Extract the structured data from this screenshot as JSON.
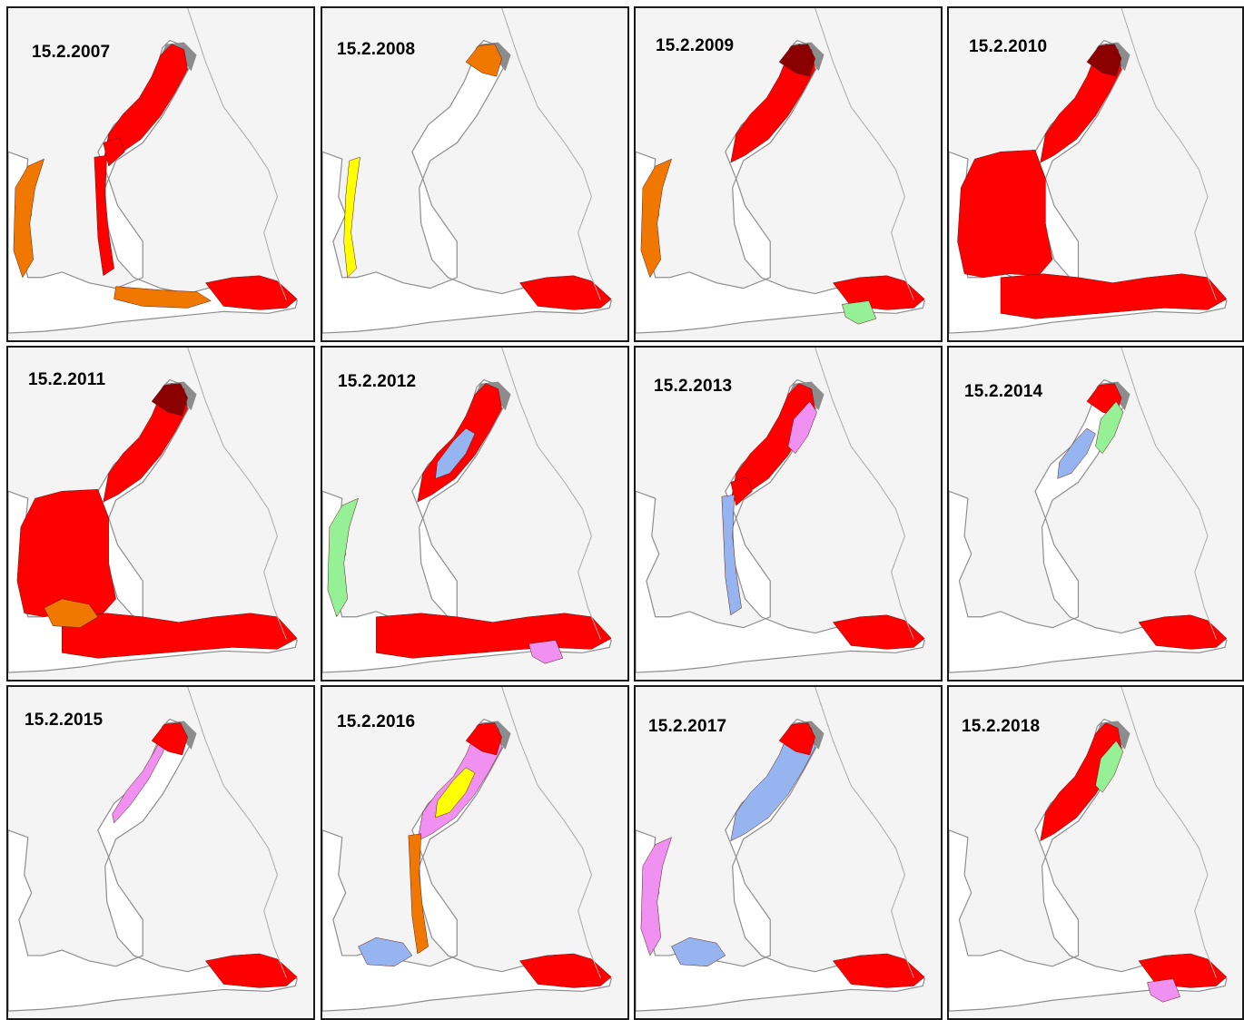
{
  "colors": {
    "land": "#f4f4f4",
    "open_water": "#ffffff",
    "land_fast_shadow": "#8c8c8c",
    "very_dark_red": "#8b0000",
    "red": "#ff0000",
    "orange": "#f07800",
    "yellow": "#ffff00",
    "green": "#96f096",
    "blue": "#96b4f0",
    "pink": "#f090f0",
    "border_line": "#a8a8a8"
  },
  "panels": [
    {
      "label": "15.2.2007",
      "ice": [
        {
          "area": "bothnian_bay",
          "color": "red"
        },
        {
          "area": "kvarken",
          "color": "red"
        },
        {
          "area": "bothnian_sea_east_coast",
          "color": "red"
        },
        {
          "area": "bothnian_sea_west_coast",
          "color": "orange"
        },
        {
          "area": "gulf_of_finland_east",
          "color": "red"
        },
        {
          "area": "gulf_of_finland_west",
          "color": "orange"
        }
      ]
    },
    {
      "label": "15.2.2008",
      "ice": [
        {
          "area": "bothnian_bay_north",
          "color": "orange"
        },
        {
          "area": "coastal_fringe",
          "color": "yellow"
        },
        {
          "area": "gulf_of_finland_east",
          "color": "red"
        }
      ]
    },
    {
      "label": "15.2.2009",
      "ice": [
        {
          "area": "bothnian_bay",
          "color": "red"
        },
        {
          "area": "bothnian_bay_north",
          "color": "very_dark_red"
        },
        {
          "area": "bothnian_sea_west_coast",
          "color": "orange"
        },
        {
          "area": "gulf_of_finland_east",
          "color": "red"
        },
        {
          "area": "gulf_of_finland_south",
          "color": "green"
        }
      ]
    },
    {
      "label": "15.2.2010",
      "ice": [
        {
          "area": "bothnian_bay",
          "color": "red"
        },
        {
          "area": "bothnian_bay_north",
          "color": "very_dark_red"
        },
        {
          "area": "bothnian_sea",
          "color": "red"
        },
        {
          "area": "gulf_of_finland",
          "color": "red"
        }
      ]
    },
    {
      "label": "15.2.2011",
      "ice": [
        {
          "area": "bothnian_bay",
          "color": "red"
        },
        {
          "area": "bothnian_bay_north",
          "color": "very_dark_red"
        },
        {
          "area": "bothnian_sea",
          "color": "red"
        },
        {
          "area": "gulf_of_finland",
          "color": "red"
        },
        {
          "area": "archipelago_sea",
          "color": "orange"
        }
      ]
    },
    {
      "label": "15.2.2012",
      "ice": [
        {
          "area": "bothnian_bay",
          "color": "red"
        },
        {
          "area": "bothnian_bay_center",
          "color": "blue"
        },
        {
          "area": "bothnian_sea_west_coast",
          "color": "green"
        },
        {
          "area": "gulf_of_finland",
          "color": "red"
        },
        {
          "area": "gulf_of_finland_south",
          "color": "pink"
        }
      ]
    },
    {
      "label": "15.2.2013",
      "ice": [
        {
          "area": "bothnian_bay",
          "color": "red"
        },
        {
          "area": "bothnian_bay_east",
          "color": "pink"
        },
        {
          "area": "kvarken",
          "color": "red"
        },
        {
          "area": "bothnian_sea_east_coast",
          "color": "blue"
        },
        {
          "area": "gulf_of_finland_east",
          "color": "red"
        }
      ]
    },
    {
      "label": "15.2.2014",
      "ice": [
        {
          "area": "bothnian_bay_north",
          "color": "red"
        },
        {
          "area": "bothnian_bay_center",
          "color": "blue"
        },
        {
          "area": "bothnian_bay_east",
          "color": "green"
        },
        {
          "area": "gulf_of_finland_east",
          "color": "red"
        }
      ]
    },
    {
      "label": "15.2.2015",
      "ice": [
        {
          "area": "bothnian_bay_coast",
          "color": "pink"
        },
        {
          "area": "bothnian_bay_north",
          "color": "red"
        },
        {
          "area": "gulf_of_finland_east",
          "color": "red"
        }
      ]
    },
    {
      "label": "15.2.2016",
      "ice": [
        {
          "area": "bothnian_bay",
          "color": "pink"
        },
        {
          "area": "bothnian_bay_north",
          "color": "red"
        },
        {
          "area": "bothnian_bay_center",
          "color": "yellow"
        },
        {
          "area": "bothnian_sea_east_coast",
          "color": "orange"
        },
        {
          "area": "archipelago_sea",
          "color": "blue"
        },
        {
          "area": "gulf_of_finland_east",
          "color": "red"
        }
      ]
    },
    {
      "label": "15.2.2017",
      "ice": [
        {
          "area": "bothnian_bay",
          "color": "blue"
        },
        {
          "area": "bothnian_bay_north",
          "color": "red"
        },
        {
          "area": "bothnian_sea_west_coast",
          "color": "pink"
        },
        {
          "area": "archipelago_sea",
          "color": "blue"
        },
        {
          "area": "gulf_of_finland_east",
          "color": "red"
        }
      ]
    },
    {
      "label": "15.2.2018",
      "ice": [
        {
          "area": "bothnian_bay",
          "color": "red"
        },
        {
          "area": "bothnian_bay_east",
          "color": "green"
        },
        {
          "area": "gulf_of_finland_east",
          "color": "red"
        },
        {
          "area": "gulf_of_finland_south",
          "color": "pink"
        }
      ]
    }
  ]
}
